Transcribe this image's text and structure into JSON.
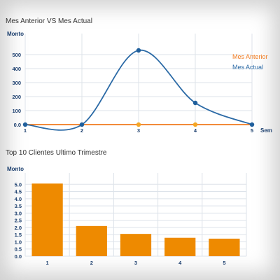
{
  "colors": {
    "mes_anterior": "#f07a1e",
    "mes_actual": "#2b6aa6",
    "point_anterior": "#f5a623",
    "point_actual": "#1f5f9c",
    "bar": "#ee8a00",
    "grid": "#dde3ea",
    "axis_text": "#1c3f6e"
  },
  "chart_data": [
    {
      "type": "line",
      "title": "Mes Anterior VS Mes Actual",
      "ylabel": "Monto",
      "xlabel": "Sem",
      "x": [
        1,
        2,
        3,
        4,
        5
      ],
      "ylim": [
        0,
        600
      ],
      "yticks": [
        "0.0",
        "100",
        "200",
        "300",
        "400",
        "500"
      ],
      "legend_position": "right",
      "series": [
        {
          "name": "Mes Anterior",
          "values": [
            0,
            0,
            0,
            0,
            0
          ]
        },
        {
          "name": "Mes Actual",
          "values": [
            0,
            0,
            530,
            155,
            0
          ]
        }
      ]
    },
    {
      "type": "bar",
      "title": "Top 10 Clientes Ultimo Trimestre",
      "ylabel": "Monto",
      "categories": [
        "1",
        "2",
        "3",
        "4",
        "5"
      ],
      "values": [
        5.05,
        2.1,
        1.55,
        1.28,
        1.22
      ],
      "ylim": [
        0,
        5.5
      ],
      "yticks": [
        "0.0",
        "0.5",
        "1.0",
        "1.5",
        "2.0",
        "2.5",
        "3.0",
        "3.5",
        "4.0",
        "4.5",
        "5.0"
      ]
    }
  ]
}
